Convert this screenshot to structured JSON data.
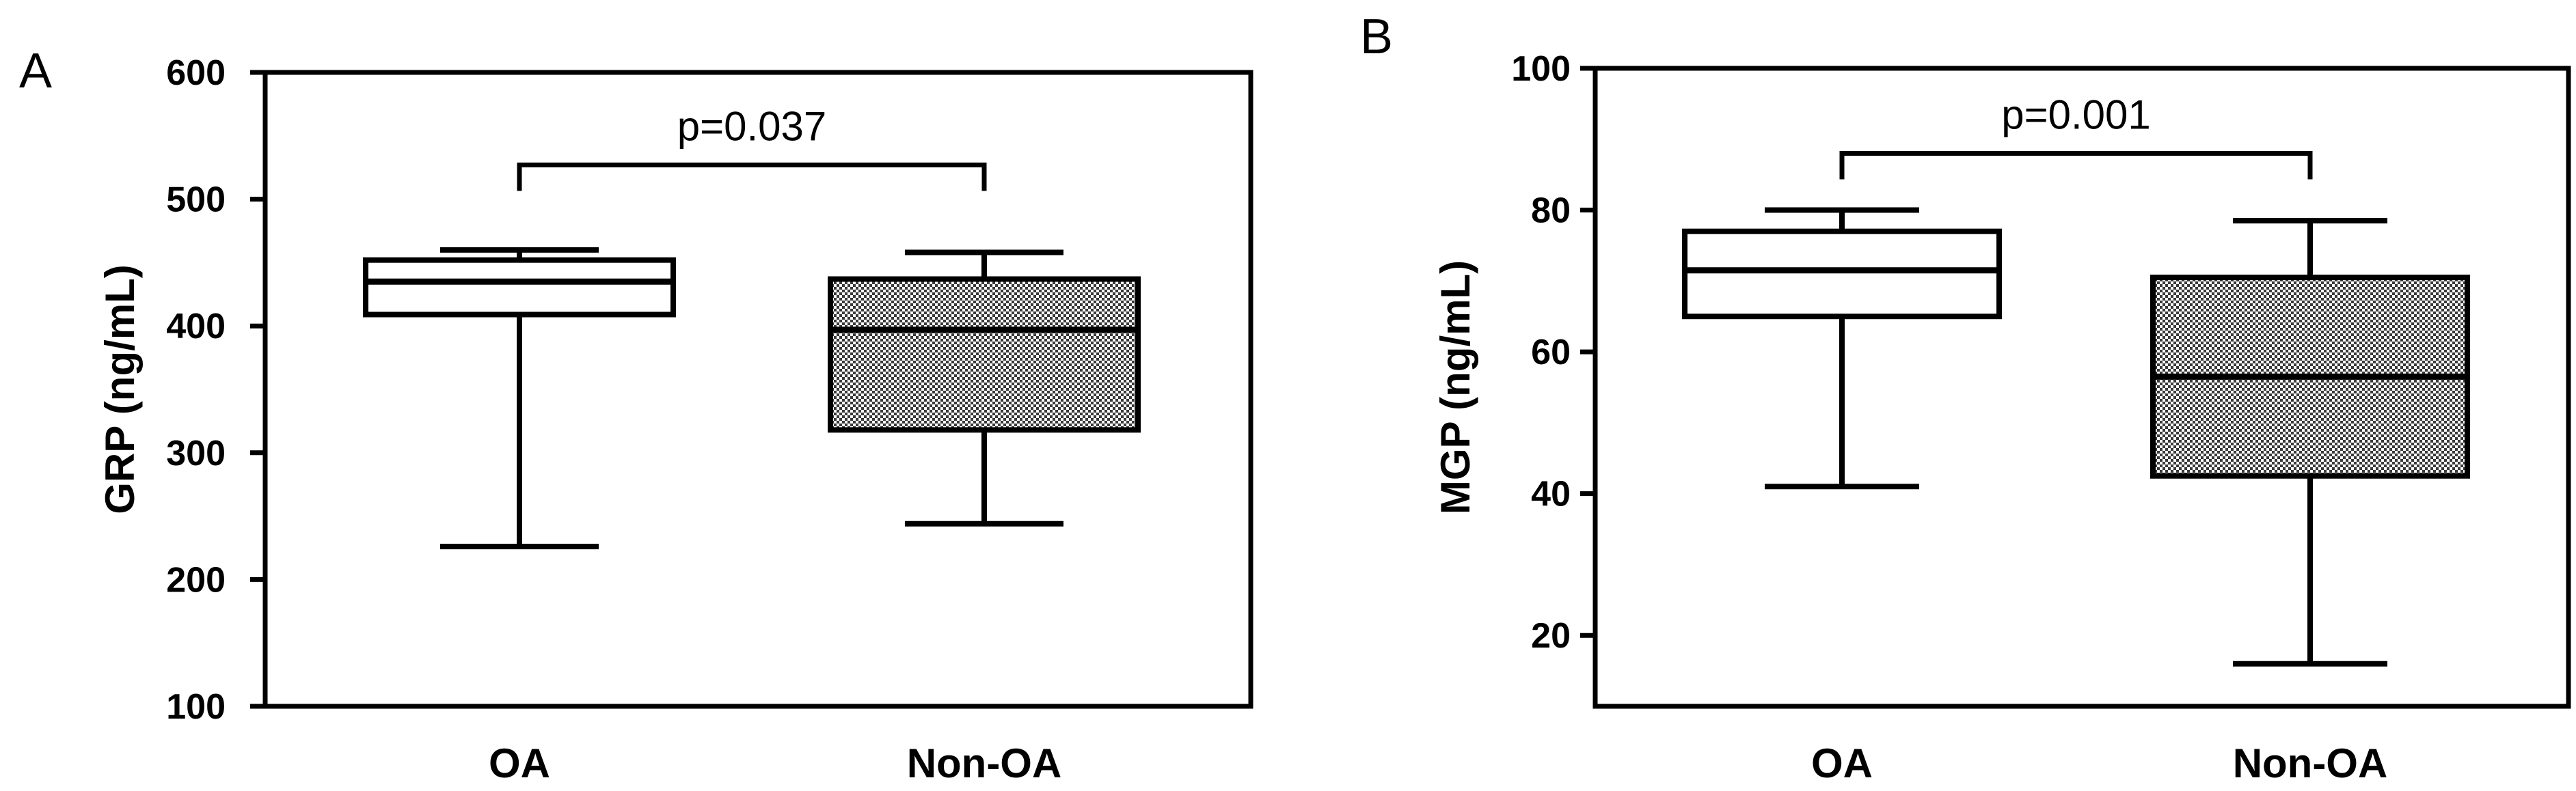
{
  "chart_data": [
    {
      "panel": "A",
      "type": "box",
      "ylabel": "GRP (ng/mL)",
      "ylim": [
        100,
        600
      ],
      "yticks": [
        100,
        200,
        300,
        400,
        500,
        600
      ],
      "categories": [
        "OA",
        "Non-OA"
      ],
      "boxes": [
        {
          "category": "OA",
          "min": 226,
          "q1": 409,
          "median": 435,
          "q3": 452,
          "max": 460,
          "fill": "plain"
        },
        {
          "category": "Non-OA",
          "min": 244,
          "q1": 318,
          "median": 397,
          "q3": 437,
          "max": 458,
          "fill": "checkered"
        }
      ],
      "annotation": {
        "text": "p=0.037",
        "y": 527
      }
    },
    {
      "panel": "B",
      "type": "box",
      "ylabel": "MGP (ng/mL)",
      "ylim": [
        10,
        100
      ],
      "yticks": [
        20,
        40,
        60,
        80,
        100
      ],
      "categories": [
        "OA",
        "Non-OA"
      ],
      "boxes": [
        {
          "category": "OA",
          "min": 41,
          "q1": 65,
          "median": 71.5,
          "q3": 77,
          "max": 80,
          "fill": "plain"
        },
        {
          "category": "Non-OA",
          "min": 16,
          "q1": 42.5,
          "median": 56.5,
          "q3": 70.5,
          "max": 78.5,
          "fill": "checkered"
        }
      ],
      "annotation": {
        "text": "p=0.001",
        "y": 88
      }
    }
  ],
  "colors": {
    "stroke": "#000000",
    "background": "#ffffff",
    "check_dark": "#3a3a3a",
    "check_light": "#ffffff"
  }
}
